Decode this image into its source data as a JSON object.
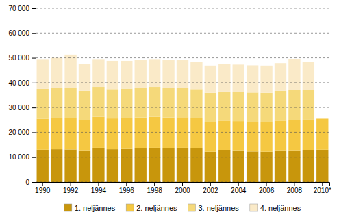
{
  "chart_data": {
    "type": "bar",
    "stacked": true,
    "categories": [
      "1990",
      null,
      "1992",
      null,
      "1994",
      null,
      "1996",
      null,
      "1998",
      null,
      "2000",
      null,
      "2002",
      null,
      "2004",
      null,
      "2006",
      null,
      "2008",
      null,
      "2010*"
    ],
    "series": [
      {
        "name": "1. neljännes",
        "color": "#c8960c",
        "values": [
          13000,
          13200,
          13100,
          12500,
          13800,
          13200,
          13300,
          13500,
          13800,
          13500,
          13800,
          13500,
          12200,
          12700,
          12500,
          12300,
          12200,
          12500,
          12500,
          12800,
          13000
        ]
      },
      {
        "name": "2. neljännes",
        "color": "#f5c842",
        "values": [
          12500,
          12600,
          12700,
          12400,
          12500,
          12400,
          12400,
          12500,
          12500,
          12500,
          12300,
          12200,
          12000,
          12000,
          12000,
          11900,
          12000,
          12200,
          12400,
          12300,
          12500
        ]
      },
      {
        "name": "3. neljännes",
        "color": "#f5d97a",
        "values": [
          12000,
          12100,
          12100,
          11800,
          12000,
          11800,
          11900,
          12000,
          12000,
          12000,
          11800,
          11700,
          11700,
          11700,
          11800,
          11800,
          11700,
          12000,
          12100,
          12000,
          0
        ]
      },
      {
        "name": "4. neljännes",
        "color": "#faeac8",
        "values": [
          12000,
          12100,
          13400,
          10700,
          11200,
          11400,
          11200,
          11300,
          11200,
          11300,
          11200,
          11100,
          11000,
          11000,
          11000,
          11000,
          11000,
          11200,
          12600,
          11400,
          0
        ]
      }
    ],
    "ylim": [
      0,
      70000
    ],
    "yticks": [
      0,
      {
        "value": 10000,
        "label": "10 000"
      },
      {
        "value": 20000,
        "label": "20 000"
      },
      {
        "value": 30000,
        "label": "30 000"
      },
      {
        "value": 40000,
        "label": "40 000"
      },
      {
        "value": 50000,
        "label": "50 000"
      },
      {
        "value": 60000,
        "label": "60 000"
      },
      {
        "value": 70000,
        "label": "70 000"
      }
    ],
    "grid": true,
    "legend": "bottom"
  }
}
